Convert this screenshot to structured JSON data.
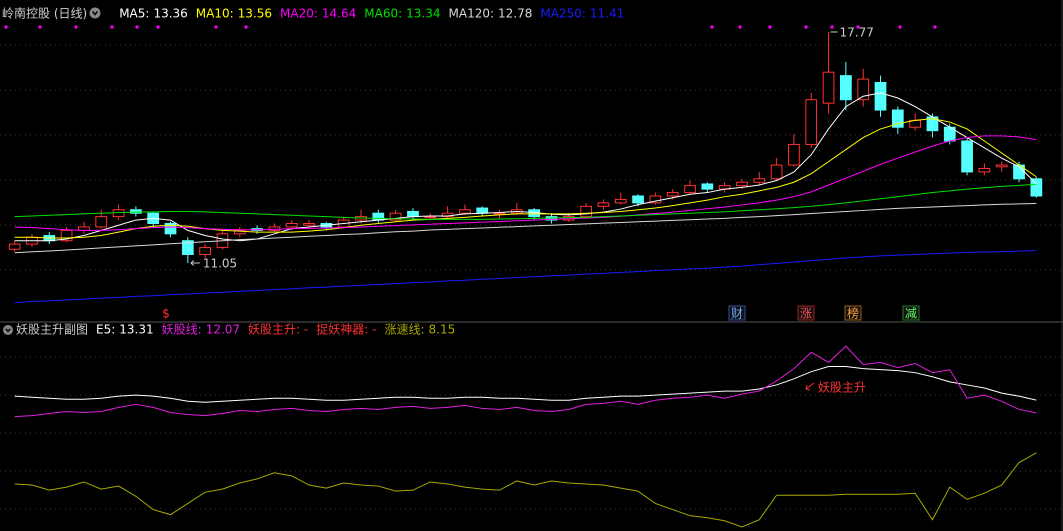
{
  "header": {
    "title": "岭南控股 (日线)"
  },
  "chart_data": [
    {
      "type": "candlestick",
      "ylim": [
        9.83,
        18.06
      ],
      "up_color": "#ff3232",
      "down_color": "#54ffff",
      "candles": [
        [
          11.45,
          11.7,
          11.38,
          11.6
        ],
        [
          11.6,
          11.9,
          11.52,
          11.8
        ],
        [
          11.85,
          11.95,
          11.6,
          11.7
        ],
        [
          11.7,
          12.1,
          11.65,
          12.0
        ],
        [
          12.0,
          12.25,
          11.9,
          12.1
        ],
        [
          12.1,
          12.6,
          12.05,
          12.4
        ],
        [
          12.4,
          12.75,
          12.3,
          12.6
        ],
        [
          12.6,
          12.7,
          12.4,
          12.5
        ],
        [
          12.5,
          12.55,
          12.1,
          12.2
        ],
        [
          12.2,
          12.25,
          11.8,
          11.9
        ],
        [
          11.7,
          11.8,
          11.05,
          11.3
        ],
        [
          11.3,
          11.6,
          11.2,
          11.5
        ],
        [
          11.5,
          12.0,
          11.45,
          11.9
        ],
        [
          11.9,
          12.1,
          11.8,
          12.0
        ],
        [
          12.05,
          12.15,
          11.9,
          12.0
        ],
        [
          12.0,
          12.2,
          11.95,
          12.1
        ],
        [
          12.1,
          12.3,
          12.0,
          12.2
        ],
        [
          12.15,
          12.3,
          12.1,
          12.2
        ],
        [
          12.2,
          12.25,
          12.0,
          12.1
        ],
        [
          12.1,
          12.4,
          12.05,
          12.3
        ],
        [
          12.3,
          12.6,
          12.2,
          12.4
        ],
        [
          12.5,
          12.6,
          12.2,
          12.3
        ],
        [
          12.3,
          12.6,
          12.25,
          12.5
        ],
        [
          12.55,
          12.65,
          12.3,
          12.4
        ],
        [
          12.4,
          12.5,
          12.3,
          12.4
        ],
        [
          12.4,
          12.7,
          12.35,
          12.5
        ],
        [
          12.5,
          12.75,
          12.45,
          12.6
        ],
        [
          12.65,
          12.7,
          12.4,
          12.5
        ],
        [
          12.5,
          12.6,
          12.35,
          12.5
        ],
        [
          12.5,
          12.8,
          12.45,
          12.6
        ],
        [
          12.6,
          12.65,
          12.3,
          12.4
        ],
        [
          12.4,
          12.5,
          12.2,
          12.3
        ],
        [
          12.3,
          12.5,
          12.25,
          12.4
        ],
        [
          12.4,
          12.8,
          12.35,
          12.7
        ],
        [
          12.7,
          12.9,
          12.6,
          12.8
        ],
        [
          12.8,
          13.1,
          12.75,
          12.9
        ],
        [
          13.0,
          13.05,
          12.7,
          12.8
        ],
        [
          12.8,
          13.1,
          12.75,
          13.0
        ],
        [
          13.0,
          13.2,
          12.9,
          13.1
        ],
        [
          13.1,
          13.45,
          13.05,
          13.3
        ],
        [
          13.35,
          13.4,
          13.1,
          13.2
        ],
        [
          13.2,
          13.4,
          13.1,
          13.3
        ],
        [
          13.3,
          13.5,
          13.2,
          13.4
        ],
        [
          13.4,
          13.7,
          13.3,
          13.5
        ],
        [
          13.5,
          14.1,
          13.45,
          13.9
        ],
        [
          13.9,
          14.8,
          13.85,
          14.5
        ],
        [
          14.5,
          16.0,
          14.4,
          15.8
        ],
        [
          15.7,
          17.77,
          15.4,
          16.6
        ],
        [
          16.5,
          16.9,
          15.5,
          15.8
        ],
        [
          15.8,
          16.7,
          15.6,
          16.4
        ],
        [
          16.3,
          16.5,
          15.3,
          15.5
        ],
        [
          15.5,
          15.6,
          14.8,
          15.0
        ],
        [
          15.0,
          15.4,
          14.9,
          15.2
        ],
        [
          15.3,
          15.4,
          14.7,
          14.9
        ],
        [
          15.0,
          15.1,
          14.5,
          14.6
        ],
        [
          14.6,
          14.7,
          13.6,
          13.7
        ],
        [
          13.7,
          13.95,
          13.6,
          13.8
        ],
        [
          13.85,
          14.0,
          13.7,
          13.9
        ],
        [
          13.9,
          14.0,
          13.4,
          13.5
        ],
        [
          13.5,
          13.55,
          12.95,
          13.0
        ]
      ],
      "series": [
        {
          "name": "MA5:",
          "color": "#ffffff",
          "values": [
            11.7,
            11.7,
            11.7,
            11.75,
            11.85,
            12.0,
            12.15,
            12.3,
            12.35,
            12.3,
            12.0,
            11.85,
            11.75,
            11.7,
            11.75,
            11.9,
            12.05,
            12.1,
            12.15,
            12.2,
            12.25,
            12.3,
            12.35,
            12.4,
            12.42,
            12.42,
            12.48,
            12.5,
            12.52,
            12.55,
            12.52,
            12.47,
            12.45,
            12.48,
            12.53,
            12.62,
            12.75,
            12.85,
            12.95,
            13.05,
            13.1,
            13.2,
            13.25,
            13.32,
            13.45,
            13.7,
            14.2,
            14.95,
            15.6,
            15.9,
            16.0,
            15.85,
            15.6,
            15.3,
            15.0,
            14.7,
            14.4,
            14.1,
            13.85,
            13.36
          ]
        },
        {
          "name": "MA10:",
          "color": "#ffff00",
          "values": [
            11.8,
            11.8,
            11.78,
            11.78,
            11.8,
            11.85,
            11.95,
            12.05,
            12.12,
            12.15,
            12.12,
            12.05,
            12.0,
            11.98,
            11.95,
            11.95,
            11.95,
            11.98,
            12.02,
            12.08,
            12.15,
            12.2,
            12.25,
            12.3,
            12.32,
            12.35,
            12.38,
            12.42,
            12.45,
            12.48,
            12.48,
            12.48,
            12.48,
            12.5,
            12.52,
            12.55,
            12.6,
            12.65,
            12.72,
            12.8,
            12.88,
            12.98,
            13.05,
            13.15,
            13.25,
            13.4,
            13.65,
            14.0,
            14.35,
            14.7,
            14.95,
            15.1,
            15.2,
            15.25,
            15.15,
            14.95,
            14.6,
            14.25,
            13.9,
            13.56
          ]
        },
        {
          "name": "MA20:",
          "color": "#ff00ff",
          "values": [
            12.1,
            12.08,
            12.05,
            12.02,
            12.0,
            12.0,
            12.02,
            12.05,
            12.08,
            12.1,
            12.08,
            12.05,
            12.03,
            12.02,
            12.02,
            12.03,
            12.05,
            12.06,
            12.07,
            12.08,
            12.1,
            12.12,
            12.14,
            12.16,
            12.18,
            12.2,
            12.22,
            12.24,
            12.26,
            12.28,
            12.3,
            12.32,
            12.34,
            12.36,
            12.38,
            12.41,
            12.45,
            12.49,
            12.53,
            12.58,
            12.63,
            12.68,
            12.74,
            12.8,
            12.88,
            12.98,
            13.12,
            13.32,
            13.52,
            13.72,
            13.92,
            14.1,
            14.28,
            14.45,
            14.6,
            14.7,
            14.75,
            14.75,
            14.72,
            14.64
          ]
        },
        {
          "name": "MA60:",
          "color": "#00e000",
          "values": [
            12.4,
            12.42,
            12.44,
            12.46,
            12.48,
            12.5,
            12.52,
            12.53,
            12.54,
            12.55,
            12.55,
            12.54,
            12.52,
            12.5,
            12.48,
            12.46,
            12.44,
            12.42,
            12.4,
            12.38,
            12.36,
            12.35,
            12.34,
            12.33,
            12.32,
            12.32,
            12.32,
            12.32,
            12.33,
            12.34,
            12.35,
            12.36,
            12.37,
            12.38,
            12.4,
            12.42,
            12.44,
            12.46,
            12.48,
            12.5,
            12.52,
            12.54,
            12.57,
            12.6,
            12.63,
            12.66,
            12.7,
            12.75,
            12.8,
            12.86,
            12.92,
            12.98,
            13.04,
            13.1,
            13.15,
            13.2,
            13.24,
            13.28,
            13.31,
            13.34
          ]
        },
        {
          "name": "MA120:",
          "color": "#d8d8d8",
          "values": [
            11.35,
            11.38,
            11.4,
            11.43,
            11.46,
            11.49,
            11.52,
            11.55,
            11.58,
            11.61,
            11.64,
            11.67,
            11.7,
            11.73,
            11.75,
            11.78,
            11.8,
            11.83,
            11.85,
            11.88,
            11.9,
            11.93,
            11.96,
            11.98,
            12.01,
            12.03,
            12.05,
            12.07,
            12.09,
            12.11,
            12.13,
            12.15,
            12.17,
            12.19,
            12.21,
            12.23,
            12.25,
            12.27,
            12.29,
            12.31,
            12.33,
            12.35,
            12.38,
            12.4,
            12.43,
            12.46,
            12.49,
            12.52,
            12.55,
            12.58,
            12.61,
            12.64,
            12.66,
            12.68,
            12.7,
            12.72,
            12.74,
            12.76,
            12.77,
            12.78
          ]
        },
        {
          "name": "MA250:",
          "color": "#1a1aff",
          "values": [
            9.9,
            9.93,
            9.95,
            9.98,
            10.0,
            10.03,
            10.05,
            10.08,
            10.1,
            10.13,
            10.15,
            10.18,
            10.2,
            10.23,
            10.25,
            10.28,
            10.3,
            10.33,
            10.35,
            10.38,
            10.4,
            10.43,
            10.45,
            10.48,
            10.5,
            10.53,
            10.55,
            10.58,
            10.6,
            10.63,
            10.65,
            10.68,
            10.7,
            10.73,
            10.75,
            10.78,
            10.8,
            10.83,
            10.85,
            10.88,
            10.9,
            10.93,
            10.96,
            11.0,
            11.04,
            11.08,
            11.12,
            11.16,
            11.2,
            11.23,
            11.26,
            11.28,
            11.3,
            11.32,
            11.34,
            11.36,
            11.37,
            11.38,
            11.4,
            11.41
          ]
        }
      ],
      "signals": [
        "$",
        "财",
        "涨",
        "榜",
        "减"
      ]
    },
    {
      "type": "line",
      "title": "妖股主升副图",
      "ylim": [
        0.5,
        19.2
      ],
      "series": [
        {
          "name": "E5:",
          "color": "#ffffff",
          "values": [
            13.7,
            13.6,
            13.5,
            13.4,
            13.4,
            13.5,
            13.7,
            13.8,
            13.7,
            13.5,
            13.2,
            13.1,
            13.2,
            13.3,
            13.4,
            13.5,
            13.5,
            13.4,
            13.3,
            13.3,
            13.4,
            13.5,
            13.6,
            13.6,
            13.5,
            13.5,
            13.6,
            13.6,
            13.5,
            13.5,
            13.4,
            13.3,
            13.3,
            13.5,
            13.6,
            13.7,
            13.7,
            13.8,
            13.9,
            14.0,
            14.1,
            14.2,
            14.2,
            14.4,
            14.8,
            15.4,
            16.1,
            16.6,
            16.6,
            16.4,
            16.3,
            16.2,
            16.0,
            15.6,
            15.1,
            14.8,
            14.5,
            14.0,
            13.7,
            13.31
          ]
        },
        {
          "name": "妖股线:",
          "color": "#e020e0",
          "values": [
            11.7,
            11.8,
            12.0,
            12.2,
            12.1,
            12.2,
            12.6,
            12.9,
            12.6,
            12.1,
            11.9,
            11.8,
            12.0,
            12.3,
            12.2,
            12.4,
            12.5,
            12.3,
            12.2,
            12.4,
            12.5,
            12.4,
            12.6,
            12.7,
            12.5,
            12.6,
            12.8,
            12.5,
            12.4,
            12.6,
            12.3,
            12.2,
            12.4,
            12.9,
            13.0,
            13.2,
            12.9,
            13.3,
            13.5,
            13.6,
            13.8,
            13.5,
            13.9,
            14.2,
            15.2,
            16.4,
            18.0,
            17.0,
            18.6,
            16.8,
            17.0,
            16.5,
            16.9,
            16.0,
            16.3,
            13.5,
            13.8,
            13.2,
            12.4,
            12.07
          ]
        },
        {
          "name": "涨速线:",
          "color": "#a8a800",
          "values": [
            5.1,
            5.0,
            4.5,
            4.8,
            5.3,
            4.6,
            4.9,
            3.9,
            2.6,
            2.1,
            3.2,
            4.3,
            4.6,
            5.2,
            5.6,
            6.2,
            5.9,
            5.0,
            4.7,
            5.2,
            5.0,
            4.9,
            4.4,
            4.5,
            5.3,
            5.1,
            4.8,
            4.6,
            4.5,
            5.4,
            5.0,
            5.4,
            5.2,
            5.1,
            5.0,
            4.7,
            4.4,
            3.2,
            2.6,
            2.0,
            1.8,
            1.5,
            0.9,
            1.6,
            4.0,
            4.0,
            4.0,
            4.0,
            4.1,
            4.1,
            4.1,
            4.1,
            4.2,
            1.6,
            4.8,
            3.6,
            4.2,
            5.0,
            7.2,
            8.15
          ]
        }
      ],
      "legend_texts": [
        "妖股主升: -",
        "捉妖神器: -"
      ],
      "annotation": "妖股主升"
    }
  ]
}
